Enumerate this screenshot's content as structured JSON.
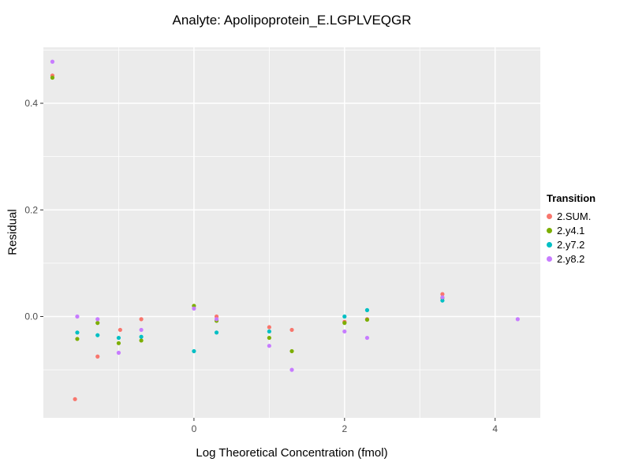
{
  "chart_data": {
    "type": "scatter",
    "title": "Analyte: Apolipoprotein_E.LGPLVEQGR",
    "xlabel": "Log Theoretical Concentration (fmol)",
    "ylabel": "Residual",
    "xlim": [
      -2.0,
      4.6
    ],
    "ylim": [
      -0.19,
      0.505
    ],
    "x_ticks": [
      0,
      2,
      4
    ],
    "x_tick_labels": [
      "0",
      "2",
      "4"
    ],
    "y_ticks": [
      0.0,
      0.2,
      0.4
    ],
    "y_tick_labels": [
      "0.0",
      "0.2",
      "0.4"
    ],
    "x_minor_ticks": [
      -1,
      1,
      3
    ],
    "y_minor_ticks": [
      -0.1,
      0.1,
      0.3,
      0.5
    ],
    "grid": true,
    "panel_bg": "#EBEBEB",
    "grid_color": "#FFFFFF",
    "tick_label_color": "#4D4D4D",
    "tick_mark_color": "#333333",
    "legend": {
      "title": "Transition",
      "position": "right"
    },
    "series": [
      {
        "name": "2.SUM.",
        "color": "#F8766D",
        "points": [
          [
            -1.88,
            0.452
          ],
          [
            -1.58,
            -0.155
          ],
          [
            -1.28,
            -0.075
          ],
          [
            -0.98,
            -0.025
          ],
          [
            -0.7,
            -0.005
          ],
          [
            0.3,
            0.0
          ],
          [
            1.0,
            -0.02
          ],
          [
            1.3,
            -0.025
          ],
          [
            2.0,
            -0.01
          ],
          [
            2.3,
            -0.005
          ],
          [
            3.3,
            0.042
          ]
        ]
      },
      {
        "name": "2.y4.1",
        "color": "#7CAE00",
        "points": [
          [
            -1.88,
            0.448
          ],
          [
            -1.55,
            -0.042
          ],
          [
            -1.28,
            -0.012
          ],
          [
            -1.0,
            -0.05
          ],
          [
            -0.7,
            -0.045
          ],
          [
            0.0,
            0.02
          ],
          [
            0.3,
            -0.008
          ],
          [
            1.0,
            -0.04
          ],
          [
            1.3,
            -0.065
          ],
          [
            2.0,
            -0.012
          ],
          [
            2.3,
            -0.006
          ],
          [
            3.3,
            0.035
          ]
        ]
      },
      {
        "name": "2.y7.2",
        "color": "#00BFC4",
        "points": [
          [
            -1.55,
            -0.03
          ],
          [
            -1.28,
            -0.035
          ],
          [
            -1.0,
            -0.04
          ],
          [
            -0.7,
            -0.038
          ],
          [
            0.0,
            -0.065
          ],
          [
            0.3,
            -0.03
          ],
          [
            1.0,
            -0.028
          ],
          [
            2.0,
            0.0
          ],
          [
            2.3,
            0.012
          ],
          [
            3.3,
            0.03
          ]
        ]
      },
      {
        "name": "2.y8.2",
        "color": "#C77CFF",
        "points": [
          [
            -1.88,
            0.478
          ],
          [
            -1.55,
            0.0
          ],
          [
            -1.28,
            -0.005
          ],
          [
            -1.0,
            -0.068
          ],
          [
            -0.7,
            -0.025
          ],
          [
            0.0,
            0.015
          ],
          [
            0.3,
            -0.005
          ],
          [
            1.0,
            -0.055
          ],
          [
            1.3,
            -0.1
          ],
          [
            2.0,
            -0.028
          ],
          [
            2.3,
            -0.04
          ],
          [
            3.3,
            0.036
          ],
          [
            4.3,
            -0.005
          ]
        ]
      }
    ]
  }
}
